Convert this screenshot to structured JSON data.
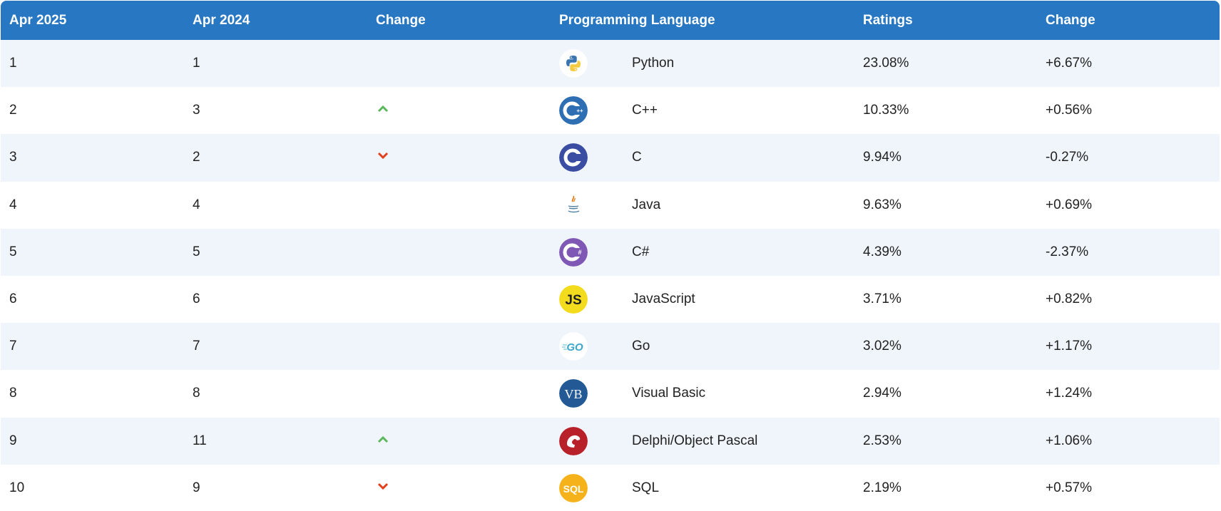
{
  "header": {
    "col_now": "Apr 2025",
    "col_prev": "Apr 2024",
    "col_change": "Change",
    "col_language": "Programming Language",
    "col_ratings": "Ratings",
    "col_change2": "Change"
  },
  "colors": {
    "header_bg": "#2777c3",
    "row_alt": "#eff5fb",
    "up": "#5cb85c",
    "down": "#e2401c"
  },
  "rows": [
    {
      "now": "1",
      "prev": "1",
      "trend": "none",
      "icon": "python-icon",
      "language": "Python",
      "rating": "23.08%",
      "change": "+6.67%"
    },
    {
      "now": "2",
      "prev": "3",
      "trend": "up",
      "icon": "cpp-icon",
      "language": "C++",
      "rating": "10.33%",
      "change": "+0.56%"
    },
    {
      "now": "3",
      "prev": "2",
      "trend": "down",
      "icon": "c-icon",
      "language": "C",
      "rating": "9.94%",
      "change": "-0.27%"
    },
    {
      "now": "4",
      "prev": "4",
      "trend": "none",
      "icon": "java-icon",
      "language": "Java",
      "rating": "9.63%",
      "change": "+0.69%"
    },
    {
      "now": "5",
      "prev": "5",
      "trend": "none",
      "icon": "csharp-icon",
      "language": "C#",
      "rating": "4.39%",
      "change": "-2.37%"
    },
    {
      "now": "6",
      "prev": "6",
      "trend": "none",
      "icon": "javascript-icon",
      "language": "JavaScript",
      "rating": "3.71%",
      "change": "+0.82%"
    },
    {
      "now": "7",
      "prev": "7",
      "trend": "none",
      "icon": "go-icon",
      "language": "Go",
      "rating": "3.02%",
      "change": "+1.17%"
    },
    {
      "now": "8",
      "prev": "8",
      "trend": "none",
      "icon": "visual-basic-icon",
      "language": "Visual Basic",
      "rating": "2.94%",
      "change": "+1.24%"
    },
    {
      "now": "9",
      "prev": "11",
      "trend": "up",
      "icon": "delphi-icon",
      "language": "Delphi/Object Pascal",
      "rating": "2.53%",
      "change": "+1.06%"
    },
    {
      "now": "10",
      "prev": "9",
      "trend": "down",
      "icon": "sql-icon",
      "language": "SQL",
      "rating": "2.19%",
      "change": "+0.57%"
    }
  ],
  "logo_text": {
    "javascript": "JS",
    "go": "GO",
    "visual_basic": "VB",
    "sql": "SQL"
  }
}
